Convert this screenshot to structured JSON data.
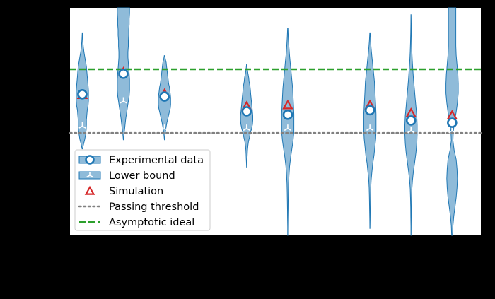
{
  "chart_data": {
    "type": "violin",
    "title": "",
    "xlabel": "",
    "ylabel": "",
    "xlim": [
      0,
      10
    ],
    "ylim": [
      0,
      1
    ],
    "grid": false,
    "legend_position": "lower-left",
    "x": [
      0.3,
      1.3,
      2.3,
      4.3,
      5.3,
      7.3,
      8.3,
      9.3
    ],
    "series": [
      {
        "name": "Experimental data",
        "marker": "circle",
        "color": "#1f77b4",
        "values": [
          0.62,
          0.71,
          0.61,
          0.545,
          0.53,
          0.55,
          0.505,
          0.495
        ]
      },
      {
        "name": "Lower bound",
        "marker": "tri_down",
        "color": "#ffffff",
        "values": [
          0.48,
          0.59,
          0.47,
          0.47,
          0.47,
          0.47,
          0.46,
          0.46
        ]
      },
      {
        "name": "Simulation",
        "marker": "triangle",
        "color": "#d62728",
        "values": [
          0.615,
          0.715,
          0.62,
          0.565,
          0.57,
          0.57,
          0.535,
          0.525
        ]
      }
    ],
    "violins": [
      {
        "x": 0.3,
        "min": 0.38,
        "max": 0.89,
        "widths": [
          0.005,
          0.03,
          0.06,
          0.08,
          0.095,
          0.1,
          0.1,
          0.11,
          0.12,
          0.14,
          0.15,
          0.15,
          0.15,
          0.14,
          0.13,
          0.12,
          0.11,
          0.1,
          0.08,
          0.06,
          0.04,
          0.025,
          0.015,
          0.008,
          0.003
        ]
      },
      {
        "x": 1.3,
        "min": 0.42,
        "max": 1.0,
        "widths": [
          0.003,
          0.015,
          0.03,
          0.045,
          0.06,
          0.08,
          0.1,
          0.12,
          0.14,
          0.15,
          0.15,
          0.15,
          0.14,
          0.13,
          0.12,
          0.11,
          0.11,
          0.12,
          0.12,
          0.13,
          0.13,
          0.14,
          0.14,
          0.15,
          0.15
        ]
      },
      {
        "x": 2.3,
        "min": 0.42,
        "max": 0.79,
        "widths": [
          0.003,
          0.01,
          0.02,
          0.03,
          0.045,
          0.06,
          0.08,
          0.1,
          0.12,
          0.14,
          0.15,
          0.15,
          0.15,
          0.14,
          0.13,
          0.12,
          0.1,
          0.09,
          0.08,
          0.07,
          0.06,
          0.05,
          0.04,
          0.02,
          0.006
        ]
      },
      {
        "x": 4.3,
        "min": 0.3,
        "max": 0.75,
        "widths": [
          0.002,
          0.005,
          0.01,
          0.015,
          0.02,
          0.03,
          0.045,
          0.07,
          0.09,
          0.12,
          0.14,
          0.15,
          0.15,
          0.14,
          0.13,
          0.12,
          0.11,
          0.1,
          0.09,
          0.08,
          0.06,
          0.05,
          0.03,
          0.015,
          0.004
        ]
      },
      {
        "x": 5.3,
        "min": 0.0,
        "max": 0.91,
        "widths": [
          0.002,
          0.003,
          0.005,
          0.008,
          0.01,
          0.015,
          0.02,
          0.03,
          0.045,
          0.07,
          0.1,
          0.13,
          0.15,
          0.15,
          0.15,
          0.14,
          0.13,
          0.12,
          0.1,
          0.08,
          0.06,
          0.04,
          0.025,
          0.012,
          0.004
        ]
      },
      {
        "x": 7.3,
        "min": 0.03,
        "max": 0.89,
        "widths": [
          0.002,
          0.004,
          0.007,
          0.01,
          0.015,
          0.02,
          0.03,
          0.05,
          0.07,
          0.1,
          0.12,
          0.14,
          0.15,
          0.15,
          0.15,
          0.14,
          0.13,
          0.12,
          0.11,
          0.09,
          0.07,
          0.05,
          0.03,
          0.015,
          0.004
        ]
      },
      {
        "x": 8.3,
        "min": 0.0,
        "max": 0.97,
        "widths": [
          0.002,
          0.003,
          0.005,
          0.008,
          0.012,
          0.02,
          0.035,
          0.06,
          0.09,
          0.12,
          0.14,
          0.15,
          0.15,
          0.14,
          0.12,
          0.1,
          0.08,
          0.06,
          0.045,
          0.03,
          0.02,
          0.012,
          0.007,
          0.004,
          0.002
        ]
      },
      {
        "x": 9.3,
        "min": 0.0,
        "max": 1.0,
        "widths": [
          0.01,
          0.02,
          0.04,
          0.07,
          0.1,
          0.12,
          0.13,
          0.12,
          0.1,
          0.05,
          0.02,
          0.03,
          0.06,
          0.1,
          0.13,
          0.15,
          0.15,
          0.14,
          0.12,
          0.1,
          0.09,
          0.09,
          0.09,
          0.09,
          0.09
        ]
      }
    ],
    "reference_lines": [
      {
        "name": "Passing threshold",
        "y": 0.45,
        "style": "dotted",
        "color": "#808080"
      },
      {
        "name": "Asymptotic ideal",
        "y": 0.73,
        "style": "dashed",
        "color": "#2ca02c"
      }
    ],
    "violin_color": "#1f77b4",
    "background": "#000000",
    "plot_background": "#ffffff",
    "legend": [
      {
        "label": "Experimental data",
        "marker": "violin-circle"
      },
      {
        "label": "Lower bound",
        "marker": "violin-tri"
      },
      {
        "label": "Simulation",
        "marker": "triangle"
      },
      {
        "label": "Passing threshold",
        "marker": "dotted-line"
      },
      {
        "label": "Asymptotic ideal",
        "marker": "dashed-line"
      }
    ]
  }
}
